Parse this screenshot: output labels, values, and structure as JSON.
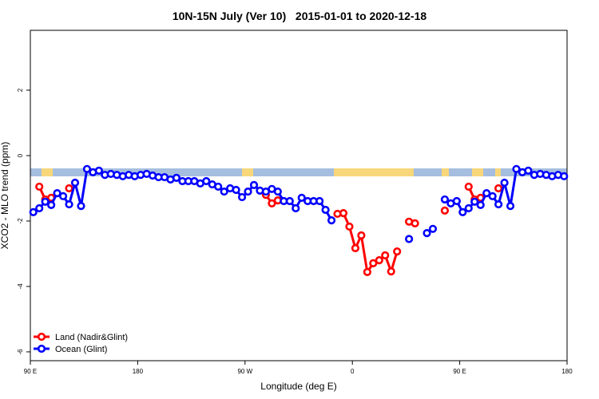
{
  "chart_data": {
    "type": "line",
    "title": "10N-15N July (Ver 10)   2015-01-01 to 2020-12-18",
    "x_label": "Longitude (deg E)",
    "y_label": "XCO2 - MLO trend (ppm)",
    "x": [
      92.5,
      97.5,
      102.5,
      107.5,
      112.5,
      117.5,
      122.5,
      127.5,
      132.5,
      137.5,
      142.5,
      147.5,
      152.5,
      157.5,
      162.5,
      167.5,
      172.5,
      177.5,
      182.5,
      187.5,
      192.5,
      197.5,
      202.5,
      207.5,
      212.5,
      217.5,
      222.5,
      227.5,
      232.5,
      237.5,
      242.5,
      247.5,
      252.5,
      257.5,
      262.5,
      267.5,
      272.5,
      277.5,
      282.5,
      287.5,
      292.5,
      297.5,
      302.5,
      307.5,
      312.5,
      317.5,
      322.5,
      327.5,
      332.5,
      337.5,
      342.5,
      347.5,
      352.5,
      357.5,
      362.5,
      367.5,
      372.5,
      377.5,
      382.5,
      387.5,
      392.5,
      397.5,
      402.5,
      407.5,
      412.5,
      417.5,
      422.5,
      427.5,
      432.5,
      437.5,
      442.5,
      447.5,
      452.5,
      457.5,
      462.5,
      467.5,
      472.5,
      477.5,
      482.5,
      487.5,
      492.5,
      497.5,
      502.5,
      507.5,
      512.5,
      517.5,
      522.5,
      527.5,
      532.5,
      537.5
    ],
    "series": [
      {
        "name": "Land (Nadir&Glint)",
        "color": "#ff0000",
        "values": [
          null,
          -0.95,
          -1.34,
          -1.29,
          null,
          null,
          -1.0,
          null,
          null,
          null,
          null,
          null,
          null,
          null,
          null,
          null,
          null,
          null,
          null,
          null,
          null,
          null,
          null,
          null,
          null,
          null,
          null,
          null,
          null,
          null,
          null,
          null,
          null,
          null,
          null,
          null,
          -1.1,
          null,
          null,
          -1.2,
          -1.46,
          -1.37,
          null,
          null,
          null,
          null,
          null,
          null,
          null,
          null,
          null,
          -1.78,
          -1.76,
          -2.17,
          -2.83,
          -2.44,
          -3.56,
          -3.29,
          -3.2,
          -3.05,
          -3.54,
          -2.93,
          null,
          -2.02,
          -2.07,
          null,
          null,
          null,
          null,
          -1.68,
          null,
          null,
          null,
          -0.95,
          -1.34,
          -1.29,
          null,
          null,
          -1.0,
          null,
          null,
          null,
          null,
          null,
          null,
          null,
          null,
          null,
          null,
          null
        ]
      },
      {
        "name": "Ocean (Glint)",
        "color": "#0000ff",
        "values": [
          -1.73,
          -1.61,
          -1.41,
          -1.51,
          -1.15,
          -1.24,
          -1.49,
          -0.83,
          -1.54,
          -0.41,
          -0.51,
          -0.46,
          -0.59,
          -0.56,
          -0.59,
          -0.63,
          -0.59,
          -0.63,
          -0.59,
          -0.56,
          -0.61,
          -0.66,
          -0.66,
          -0.73,
          -0.68,
          -0.78,
          -0.78,
          -0.78,
          -0.85,
          -0.78,
          -0.88,
          -0.95,
          -1.1,
          -1.0,
          -1.05,
          -1.27,
          -1.1,
          -0.9,
          -1.07,
          -1.1,
          -1.02,
          -1.1,
          -1.39,
          -1.39,
          -1.61,
          -1.29,
          -1.39,
          -1.39,
          -1.39,
          -1.66,
          -1.98,
          null,
          null,
          null,
          null,
          null,
          null,
          null,
          null,
          null,
          null,
          null,
          null,
          -2.55,
          null,
          null,
          -2.37,
          -2.24,
          null,
          -1.34,
          -1.46,
          -1.39,
          -1.73,
          -1.61,
          -1.41,
          -1.51,
          -1.15,
          -1.24,
          -1.49,
          -0.83,
          -1.54,
          -0.41,
          -0.51,
          -0.46,
          -0.59,
          -0.56,
          -0.59,
          -0.63,
          -0.59,
          -0.63
        ]
      }
    ],
    "xlim": [
      90,
      540
    ],
    "xticks": [
      {
        "value": 90,
        "label": "90 E"
      },
      180,
      {
        "value": 270,
        "label": "90 W"
      },
      {
        "value": 360,
        "label": "0"
      },
      {
        "value": 450,
        "label": "90 E"
      },
      {
        "value": 540,
        "label": "180"
      }
    ],
    "ylim": [
      -6.27,
      3.83
    ],
    "yticks": [
      -6,
      -4,
      -2,
      0,
      2
    ],
    "legend": "bottom-left"
  }
}
